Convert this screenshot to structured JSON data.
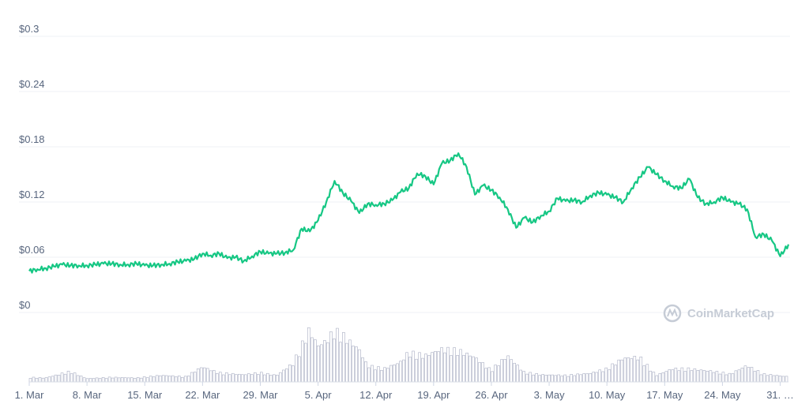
{
  "chart_data": {
    "type": "line",
    "x_axis": {
      "type": "date",
      "start": "2021-03-01",
      "end": "2021-06-01"
    },
    "y_axis": {
      "min": 0,
      "max": 0.3,
      "ticks": [
        0,
        0.06,
        0.12,
        0.18,
        0.24,
        0.3
      ],
      "prefix": "$"
    },
    "y_tick_labels": [
      "$0",
      "$0.06",
      "$0.12",
      "$0.18",
      "$0.24",
      "$0.3"
    ],
    "x_tick_labels": [
      "1. Mar",
      "8. Mar",
      "15. Mar",
      "22. Mar",
      "29. Mar",
      "5. Apr",
      "12. Apr",
      "19. Apr",
      "26. Apr",
      "3. May",
      "10. May",
      "17. May",
      "24. May",
      "31. …"
    ],
    "x_tick_dates": [
      "2021-03-01",
      "2021-03-08",
      "2021-03-15",
      "2021-03-22",
      "2021-03-29",
      "2021-04-05",
      "2021-04-12",
      "2021-04-19",
      "2021-04-26",
      "2021-05-03",
      "2021-05-10",
      "2021-05-17",
      "2021-05-24",
      "2021-05-31"
    ],
    "grid": true,
    "legend": "none",
    "series": [
      {
        "color": "#16c784",
        "points": [
          [
            "2021-03-01",
            0.045
          ],
          [
            "2021-03-02",
            0.047
          ],
          [
            "2021-03-03",
            0.048
          ],
          [
            "2021-03-04",
            0.05
          ],
          [
            "2021-03-05",
            0.052
          ],
          [
            "2021-03-06",
            0.051
          ],
          [
            "2021-03-07",
            0.051
          ],
          [
            "2021-03-08",
            0.051
          ],
          [
            "2021-03-09",
            0.052
          ],
          [
            "2021-03-10",
            0.053
          ],
          [
            "2021-03-11",
            0.053
          ],
          [
            "2021-03-12",
            0.052
          ],
          [
            "2021-03-13",
            0.052
          ],
          [
            "2021-03-14",
            0.053
          ],
          [
            "2021-03-15",
            0.051
          ],
          [
            "2021-03-16",
            0.051
          ],
          [
            "2021-03-17",
            0.052
          ],
          [
            "2021-03-18",
            0.053
          ],
          [
            "2021-03-19",
            0.055
          ],
          [
            "2021-03-20",
            0.056
          ],
          [
            "2021-03-21",
            0.058
          ],
          [
            "2021-03-22",
            0.064
          ],
          [
            "2021-03-23",
            0.062
          ],
          [
            "2021-03-24",
            0.064
          ],
          [
            "2021-03-25",
            0.059
          ],
          [
            "2021-03-26",
            0.06
          ],
          [
            "2021-03-27",
            0.056
          ],
          [
            "2021-03-28",
            0.061
          ],
          [
            "2021-03-29",
            0.066
          ],
          [
            "2021-03-30",
            0.064
          ],
          [
            "2021-03-31",
            0.064
          ],
          [
            "2021-04-01",
            0.065
          ],
          [
            "2021-04-02",
            0.068
          ],
          [
            "2021-04-03",
            0.091
          ],
          [
            "2021-04-04",
            0.088
          ],
          [
            "2021-04-05",
            0.1
          ],
          [
            "2021-04-06",
            0.12
          ],
          [
            "2021-04-07",
            0.143
          ],
          [
            "2021-04-08",
            0.13
          ],
          [
            "2021-04-09",
            0.121
          ],
          [
            "2021-04-10",
            0.108
          ],
          [
            "2021-04-11",
            0.118
          ],
          [
            "2021-04-12",
            0.117
          ],
          [
            "2021-04-13",
            0.118
          ],
          [
            "2021-04-14",
            0.122
          ],
          [
            "2021-04-15",
            0.131
          ],
          [
            "2021-04-16",
            0.135
          ],
          [
            "2021-04-17",
            0.151
          ],
          [
            "2021-04-18",
            0.148
          ],
          [
            "2021-04-19",
            0.139
          ],
          [
            "2021-04-20",
            0.162
          ],
          [
            "2021-04-21",
            0.165
          ],
          [
            "2021-04-22",
            0.173
          ],
          [
            "2021-04-23",
            0.158
          ],
          [
            "2021-04-24",
            0.128
          ],
          [
            "2021-04-25",
            0.138
          ],
          [
            "2021-04-26",
            0.133
          ],
          [
            "2021-04-27",
            0.125
          ],
          [
            "2021-04-28",
            0.112
          ],
          [
            "2021-04-29",
            0.092
          ],
          [
            "2021-04-30",
            0.103
          ],
          [
            "2021-05-01",
            0.098
          ],
          [
            "2021-05-02",
            0.105
          ],
          [
            "2021-05-03",
            0.11
          ],
          [
            "2021-05-04",
            0.124
          ],
          [
            "2021-05-05",
            0.121
          ],
          [
            "2021-05-06",
            0.122
          ],
          [
            "2021-05-07",
            0.12
          ],
          [
            "2021-05-08",
            0.127
          ],
          [
            "2021-05-09",
            0.13
          ],
          [
            "2021-05-10",
            0.128
          ],
          [
            "2021-05-11",
            0.125
          ],
          [
            "2021-05-12",
            0.12
          ],
          [
            "2021-05-13",
            0.135
          ],
          [
            "2021-05-14",
            0.147
          ],
          [
            "2021-05-15",
            0.158
          ],
          [
            "2021-05-16",
            0.15
          ],
          [
            "2021-05-17",
            0.143
          ],
          [
            "2021-05-18",
            0.137
          ],
          [
            "2021-05-19",
            0.135
          ],
          [
            "2021-05-20",
            0.145
          ],
          [
            "2021-05-21",
            0.125
          ],
          [
            "2021-05-22",
            0.118
          ],
          [
            "2021-05-23",
            0.12
          ],
          [
            "2021-05-24",
            0.125
          ],
          [
            "2021-05-25",
            0.12
          ],
          [
            "2021-05-26",
            0.118
          ],
          [
            "2021-05-27",
            0.112
          ],
          [
            "2021-05-28",
            0.082
          ],
          [
            "2021-05-29",
            0.085
          ],
          [
            "2021-05-30",
            0.078
          ],
          [
            "2021-05-31",
            0.061
          ],
          [
            "2021-06-01",
            0.074
          ]
        ]
      }
    ],
    "volume": {
      "color": "#a9aec3",
      "points": [
        [
          "2021-03-01",
          0.07
        ],
        [
          "2021-03-03",
          0.06
        ],
        [
          "2021-03-06",
          0.16
        ],
        [
          "2021-03-08",
          0.05
        ],
        [
          "2021-03-11",
          0.07
        ],
        [
          "2021-03-14",
          0.06
        ],
        [
          "2021-03-17",
          0.1
        ],
        [
          "2021-03-20",
          0.08
        ],
        [
          "2021-03-22",
          0.23
        ],
        [
          "2021-03-24",
          0.14
        ],
        [
          "2021-03-27",
          0.11
        ],
        [
          "2021-03-29",
          0.14
        ],
        [
          "2021-03-31",
          0.1
        ],
        [
          "2021-04-02",
          0.28
        ],
        [
          "2021-04-04",
          0.8
        ],
        [
          "2021-04-05",
          0.55
        ],
        [
          "2021-04-06",
          0.62
        ],
        [
          "2021-04-07",
          0.78
        ],
        [
          "2021-04-08",
          0.72
        ],
        [
          "2021-04-09",
          0.6
        ],
        [
          "2021-04-10",
          0.5
        ],
        [
          "2021-04-11",
          0.25
        ],
        [
          "2021-04-13",
          0.2
        ],
        [
          "2021-04-15",
          0.3
        ],
        [
          "2021-04-16",
          0.45
        ],
        [
          "2021-04-18",
          0.4
        ],
        [
          "2021-04-20",
          0.5
        ],
        [
          "2021-04-22",
          0.48
        ],
        [
          "2021-04-24",
          0.38
        ],
        [
          "2021-04-26",
          0.18
        ],
        [
          "2021-04-28",
          0.4
        ],
        [
          "2021-04-30",
          0.15
        ],
        [
          "2021-05-02",
          0.11
        ],
        [
          "2021-05-05",
          0.1
        ],
        [
          "2021-05-08",
          0.13
        ],
        [
          "2021-05-10",
          0.2
        ],
        [
          "2021-05-12",
          0.36
        ],
        [
          "2021-05-14",
          0.38
        ],
        [
          "2021-05-16",
          0.1
        ],
        [
          "2021-05-18",
          0.2
        ],
        [
          "2021-05-20",
          0.2
        ],
        [
          "2021-05-23",
          0.16
        ],
        [
          "2021-05-25",
          0.12
        ],
        [
          "2021-05-27",
          0.25
        ],
        [
          "2021-05-29",
          0.12
        ],
        [
          "2021-06-01",
          0.08
        ]
      ]
    }
  },
  "watermark": {
    "text": "CoinMarketCap",
    "icon": "coinmarketcap-logo-icon"
  }
}
